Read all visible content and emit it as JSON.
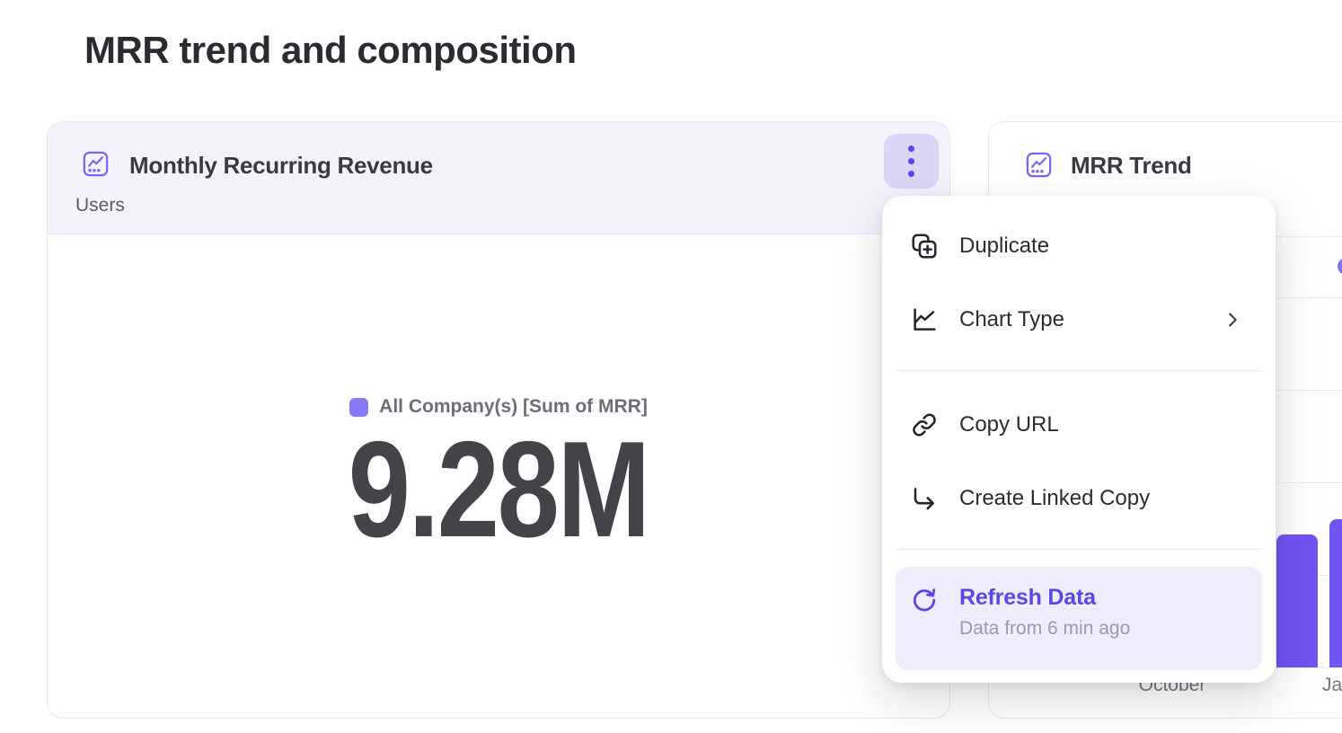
{
  "page_title": "MRR trend and composition",
  "mrr_card": {
    "title": "Monthly Recurring Revenue",
    "subtitle": "Users",
    "legend": "All Company(s) [Sum of MRR]",
    "value": "9.28M"
  },
  "trend_card": {
    "title": "MRR Trend",
    "x_labels": [
      "October",
      "Ja"
    ]
  },
  "context_menu": {
    "duplicate": "Duplicate",
    "chart_type": "Chart Type",
    "copy_url": "Copy URL",
    "create_linked_copy": "Create Linked Copy",
    "refresh": "Refresh Data",
    "refresh_caption": "Data from 6 min ago"
  },
  "colors": {
    "accent_purple": "#7253f3",
    "legend_chip_purple": "#8879f8",
    "card_header_lavender": "#f4f2fc",
    "kebab_button_bg": "#dcd6f6",
    "refresh_row_bg": "#efecfb",
    "refresh_text_purple": "#5948e8",
    "gridline": "#ececf0"
  },
  "chart_data": [
    {
      "type": "number",
      "title": "Monthly Recurring Revenue",
      "legend": "All Company(s) [Sum of MRR]",
      "value": "9.28M"
    },
    {
      "type": "bar",
      "title": "MRR Trend",
      "x_tick_labels_visible": [
        "October",
        "Ja"
      ],
      "bars": [
        {
          "near_label": "Ja",
          "height_fraction": 0.36
        },
        {
          "near_label": "Ja",
          "height_fraction": 0.4
        }
      ],
      "grid": true,
      "note": "Chart mostly covered by the open context menu; only two purple bars near the right viewport edge and part of a legend chip are visible. Y-axis values not visible."
    }
  ]
}
